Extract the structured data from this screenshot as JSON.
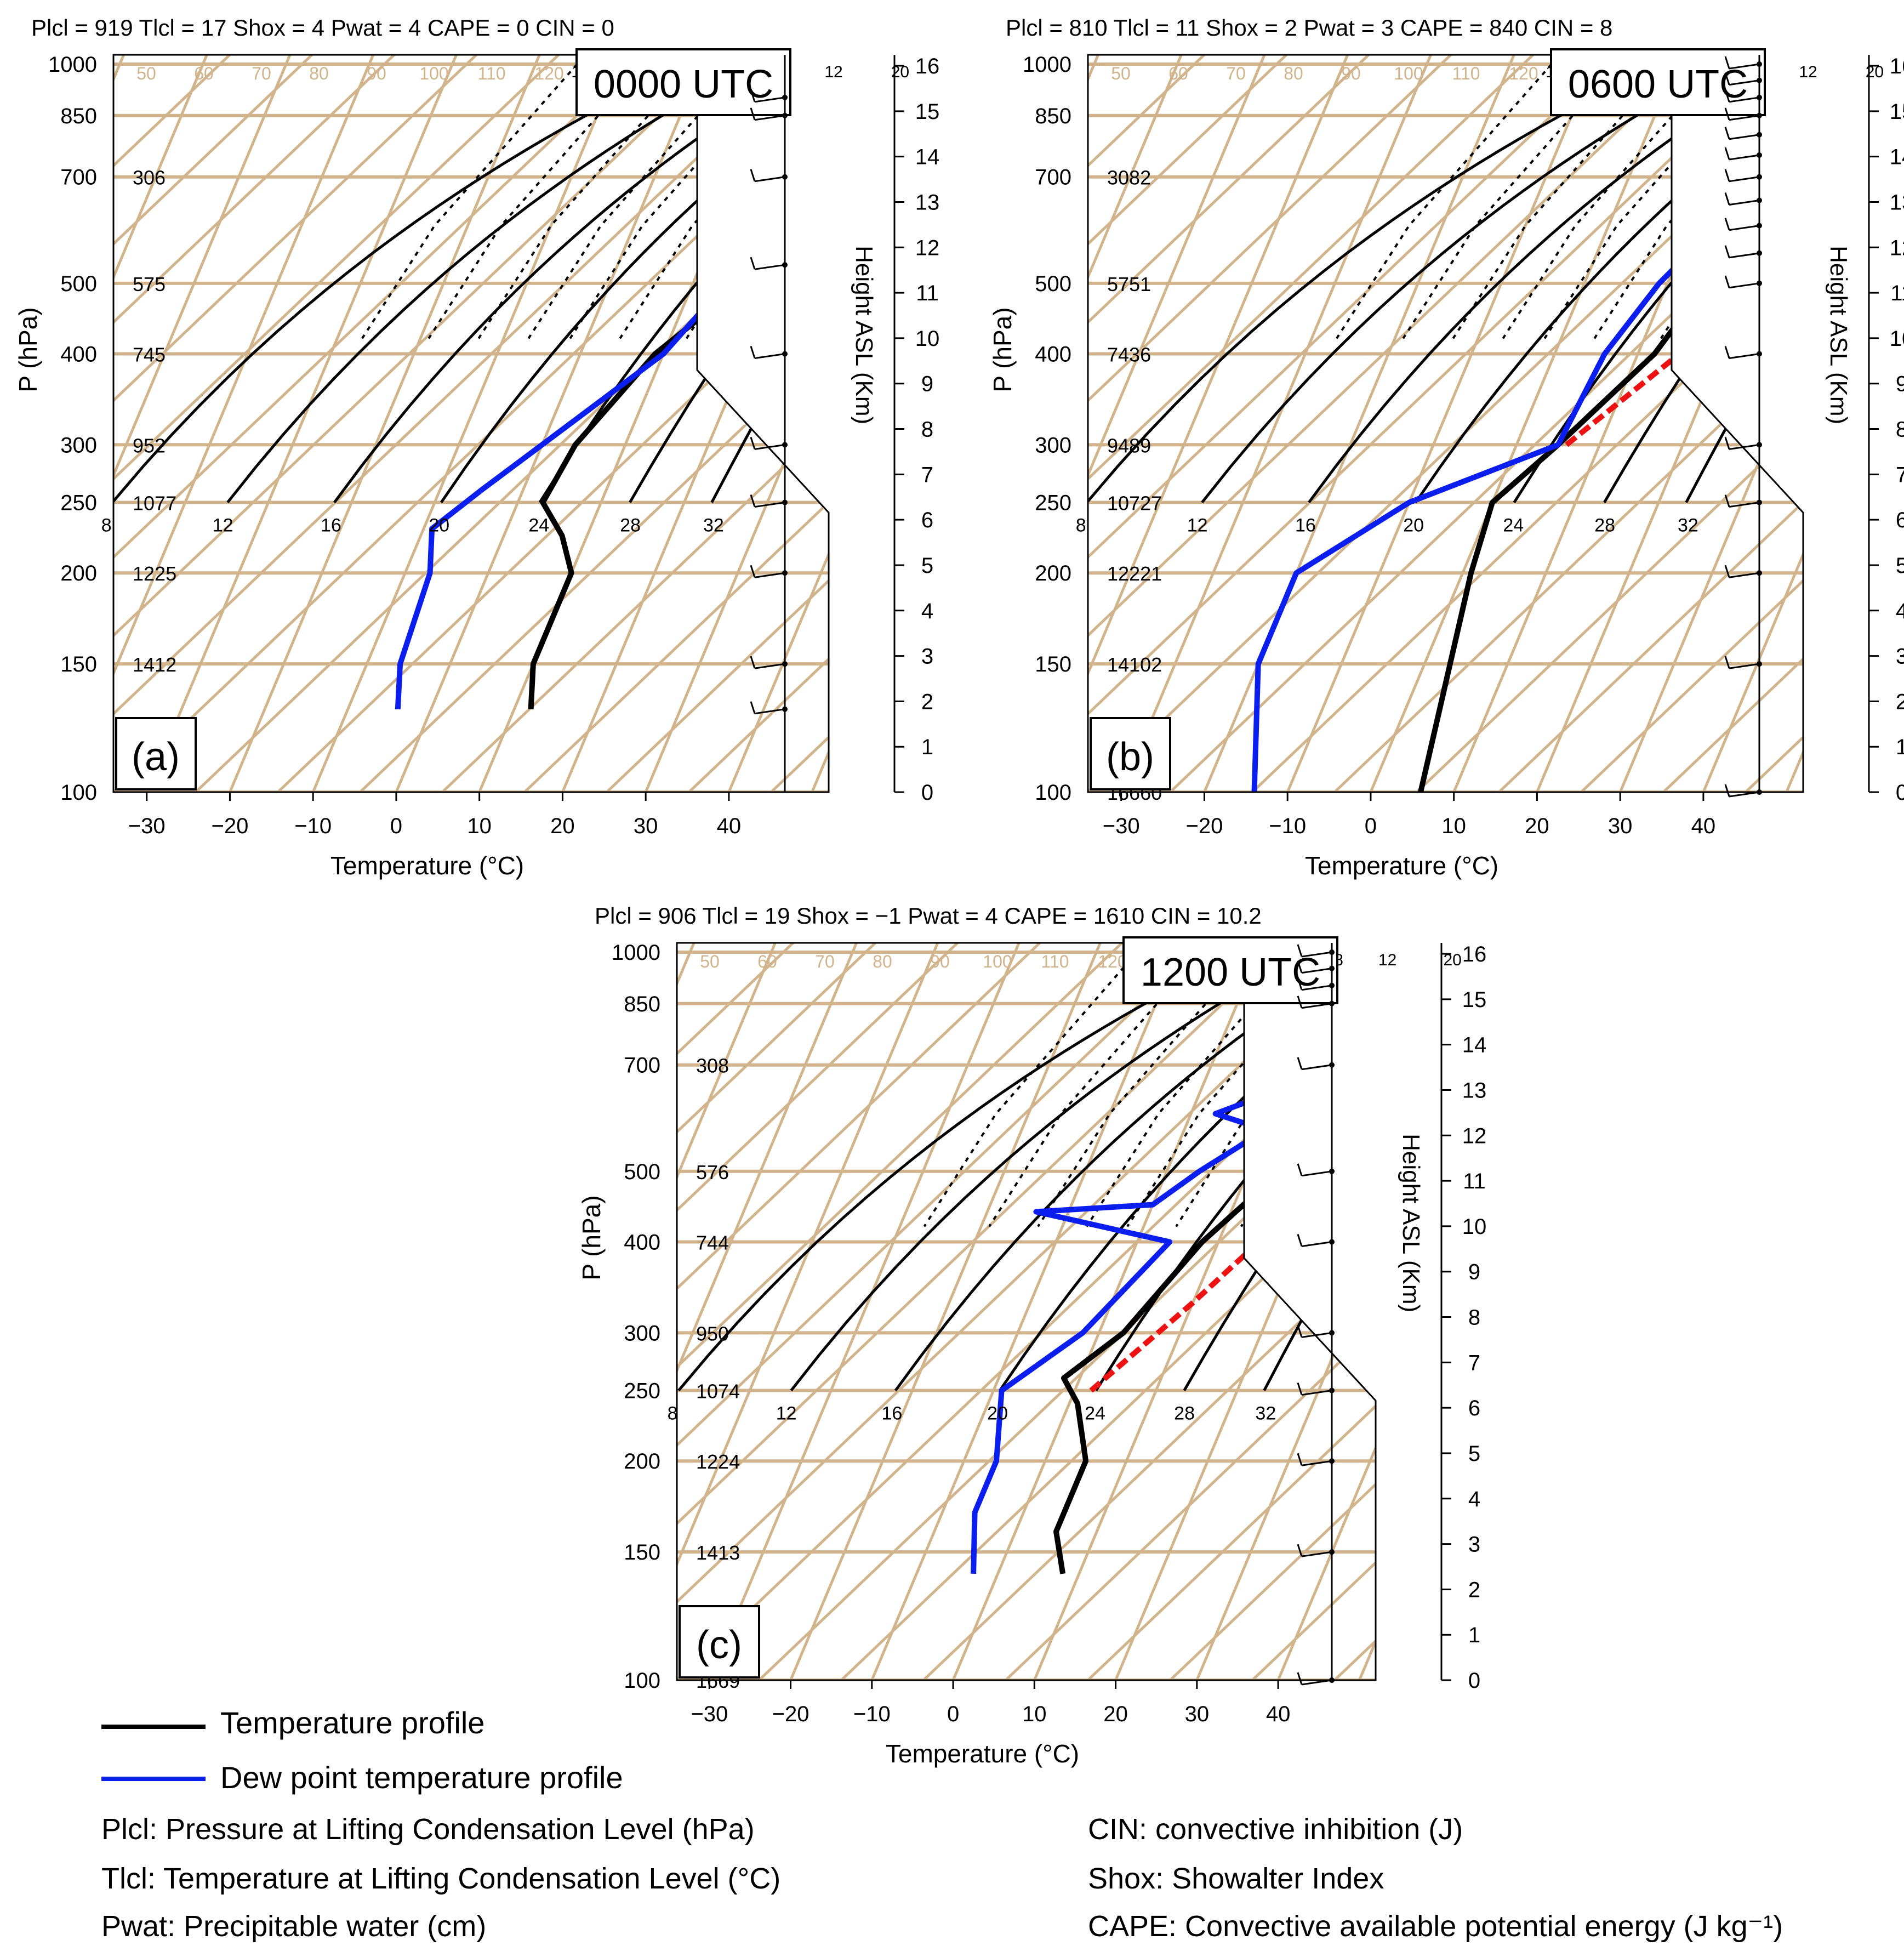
{
  "figure": {
    "axis_ranges": {
      "temp_c": [
        -34,
        52
      ],
      "pressure_hpa": [
        1030,
        100
      ],
      "height_km": [
        0,
        16
      ]
    },
    "colors": {
      "grid": "#d2b48c",
      "temperature": "#000000",
      "dewpoint": "#0a1ef0",
      "parcel": "#ee1111"
    },
    "common": {
      "xlabel": "Temperature (°C)",
      "ylabel": "P (hPa)",
      "y2label": "Height  ASL (Km)",
      "xticks": [
        "−30",
        "−20",
        "−10",
        "0",
        "10",
        "20",
        "30",
        "40"
      ],
      "pticks": [
        "100",
        "150",
        "200",
        "250",
        "300",
        "400",
        "500",
        "700",
        "850",
        "1000"
      ],
      "hticks": [
        "0",
        "1",
        "2",
        "3",
        "4",
        "5",
        "6",
        "7",
        "8",
        "9",
        "10",
        "11",
        "12",
        "13",
        "14",
        "15",
        "16"
      ],
      "moist_labels": [
        "8",
        "12",
        "16",
        "20",
        "24",
        "28",
        "32"
      ],
      "mixing_labels": [
        "1",
        "2",
        "3",
        "5",
        "8",
        "12",
        "20"
      ],
      "iso_labels": [
        "50",
        "60",
        "70",
        "80",
        "90",
        "100",
        "110",
        "120"
      ]
    }
  },
  "chart_data": [
    {
      "type": "line",
      "panel_label": "(a)",
      "time_label": "0000 UTC",
      "title": "Plcl = 919   Tlcl = 17   Shox = 4   Pwat = 4   CAPE = 0   CIN  =  0",
      "heights": [
        {
          "p": 150,
          "label": "1412"
        },
        {
          "p": 200,
          "label": "1225"
        },
        {
          "p": 250,
          "label": "1077"
        },
        {
          "p": 300,
          "label": "952"
        },
        {
          "p": 400,
          "label": "745"
        },
        {
          "p": 500,
          "label": "575"
        },
        {
          "p": 700,
          "label": "306"
        }
      ],
      "series": [
        {
          "name": "Temperature profile",
          "points": [
            [
              12,
              130
            ],
            [
              10,
              150
            ],
            [
              10,
              200
            ],
            [
              7,
              225
            ],
            [
              3,
              250
            ],
            [
              4,
              300
            ],
            [
              9,
              400
            ],
            [
              16,
              500
            ],
            [
              20,
              850
            ],
            [
              21,
              950
            ]
          ]
        },
        {
          "name": "Dew point temperature profile",
          "points": [
            [
              -4,
              130
            ],
            [
              -6,
              150
            ],
            [
              -7,
              200
            ],
            [
              -9,
              230
            ],
            [
              -5,
              260
            ],
            [
              0,
              300
            ],
            [
              10,
              400
            ],
            [
              14,
              500
            ],
            [
              16,
              700
            ],
            [
              20,
              900
            ]
          ]
        },
        {
          "name": "Parcel",
          "points": [
            [
              16,
              530
            ],
            [
              17,
              545
            ]
          ]
        }
      ],
      "wind_barb_pressures": [
        130,
        150,
        200,
        250,
        300,
        400,
        530,
        700,
        850,
        900
      ]
    },
    {
      "type": "line",
      "panel_label": "(b)",
      "time_label": "0600 UTC",
      "title": "Plcl = 810   Tlcl = 11   Shox = 2   Pwat = 3   CAPE = 840   CIN  =  8",
      "heights": [
        {
          "p": 100,
          "label": "16660"
        },
        {
          "p": 150,
          "label": "14102"
        },
        {
          "p": 200,
          "label": "12221"
        },
        {
          "p": 250,
          "label": "10727"
        },
        {
          "p": 300,
          "label": "9489"
        },
        {
          "p": 400,
          "label": "7436"
        },
        {
          "p": 500,
          "label": "5751"
        },
        {
          "p": 700,
          "label": "3082"
        }
      ],
      "series": [
        {
          "name": "Temperature profile",
          "points": [
            [
              6,
              100
            ],
            [
              1,
              200
            ],
            [
              0,
              250
            ],
            [
              5,
              300
            ],
            [
              12,
              400
            ],
            [
              17,
              600
            ],
            [
              18,
              800
            ],
            [
              27,
              950
            ]
          ]
        },
        {
          "name": "Dew point temperature profile",
          "points": [
            [
              -14,
              100
            ],
            [
              -20,
              150
            ],
            [
              -20,
              200
            ],
            [
              -10,
              250
            ],
            [
              5,
              300
            ],
            [
              6,
              400
            ],
            [
              9,
              500
            ],
            [
              13,
              600
            ],
            [
              16,
              700
            ],
            [
              16,
              850
            ],
            [
              16,
              950
            ]
          ]
        },
        {
          "name": "Parcel",
          "points": [
            [
              6,
              300
            ],
            [
              15,
              400
            ],
            [
              20,
              500
            ],
            [
              21,
              600
            ],
            [
              21,
              800
            ]
          ]
        }
      ],
      "wind_barb_pressures": [
        100,
        150,
        200,
        250,
        300,
        400,
        500,
        550,
        600,
        650,
        700,
        750,
        800,
        850,
        900,
        950,
        1000
      ]
    },
    {
      "type": "line",
      "panel_label": "(c)",
      "time_label": "1200 UTC",
      "title": "Plcl = 906   Tlcl = 19   Shox = −1   Pwat = 4   CAPE = 1610   CIN = 10.2",
      "heights": [
        {
          "p": 100,
          "label": "1669"
        },
        {
          "p": 150,
          "label": "1413"
        },
        {
          "p": 200,
          "label": "1224"
        },
        {
          "p": 250,
          "label": "1074"
        },
        {
          "p": 300,
          "label": "950"
        },
        {
          "p": 400,
          "label": "744"
        },
        {
          "p": 500,
          "label": "576"
        },
        {
          "p": 700,
          "label": "308"
        }
      ],
      "series": [
        {
          "name": "Temperature profile",
          "points": [
            [
              8,
              140
            ],
            [
              5,
              160
            ],
            [
              5,
              200
            ],
            [
              1,
              240
            ],
            [
              -2,
              260
            ],
            [
              3,
              300
            ],
            [
              8,
              400
            ],
            [
              14,
              500
            ],
            [
              17,
              650
            ],
            [
              21,
              850
            ],
            [
              25,
              920
            ]
          ]
        },
        {
          "name": "Dew point temperature profile",
          "points": [
            [
              -3,
              140
            ],
            [
              -6,
              170
            ],
            [
              -6,
              200
            ],
            [
              -9,
              250
            ],
            [
              -2,
              300
            ],
            [
              4,
              400
            ],
            [
              -14,
              440
            ],
            [
              0,
              450
            ],
            [
              4,
              500
            ],
            [
              10,
              570
            ],
            [
              3,
              600
            ],
            [
              10,
              650
            ],
            [
              16,
              850
            ],
            [
              21,
              920
            ]
          ]
        },
        {
          "name": "Parcel",
          "points": [
            [
              2,
              250
            ],
            [
              10,
              330
            ],
            [
              15,
              400
            ],
            [
              19,
              500
            ],
            [
              22,
              700
            ],
            [
              23,
              850
            ]
          ]
        }
      ],
      "wind_barb_pressures": [
        100,
        150,
        200,
        250,
        300,
        400,
        500,
        700,
        850,
        900,
        950,
        1000
      ]
    }
  ],
  "legend": {
    "temperature": "Temperature profile",
    "dewpoint": "Dew point temperature profile"
  },
  "definitions": {
    "plcl": "Plcl: Pressure at Lifting Condensation Level (hPa)",
    "tlcl": "Tlcl: Temperature at Lifting Condensation Level (°C)",
    "pwat": "Pwat: Precipitable water (cm)",
    "cin": "CIN: convective inhibition (J)",
    "shox": "Shox: Showalter Index",
    "cape": "CAPE: Convective available potential energy (J kg⁻¹)"
  }
}
